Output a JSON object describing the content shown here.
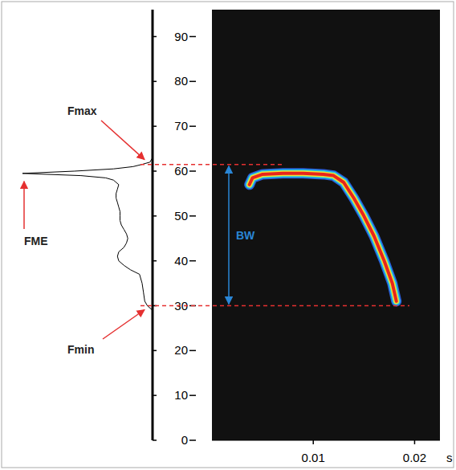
{
  "chart_data": {
    "type": "spectrogram",
    "x_label": "s",
    "xlim": [
      0,
      0.0225
    ],
    "xticks": [
      0.01,
      0.02
    ],
    "ylim": [
      0,
      96
    ],
    "yticks": [
      0,
      10,
      20,
      30,
      40,
      50,
      60,
      70,
      80,
      90
    ],
    "contour": {
      "x": [
        0.0037,
        0.004,
        0.005,
        0.007,
        0.009,
        0.011,
        0.012,
        0.013,
        0.014,
        0.015,
        0.016,
        0.017,
        0.0178,
        0.0182
      ],
      "y": [
        57,
        58.5,
        59.3,
        59.5,
        59.5,
        59.3,
        59,
        57.5,
        54,
        50,
        45.5,
        40,
        35,
        31
      ]
    },
    "spectrum": {
      "amplitude_lim": [
        0,
        1
      ],
      "frequency": [
        29,
        30,
        31,
        33,
        35,
        37,
        38,
        39,
        40,
        41,
        42,
        43,
        44,
        45,
        46,
        47,
        48,
        49,
        50,
        51,
        52,
        53,
        54,
        55,
        56,
        57,
        58,
        58.5,
        59,
        59.5,
        60,
        60.5,
        61,
        61.5,
        62,
        63
      ],
      "amplitude": [
        0,
        0.04,
        0.06,
        0.07,
        0.08,
        0.1,
        0.17,
        0.22,
        0.26,
        0.27,
        0.26,
        0.22,
        0.2,
        0.19,
        0.2,
        0.22,
        0.24,
        0.25,
        0.25,
        0.25,
        0.26,
        0.27,
        0.28,
        0.28,
        0.27,
        0.26,
        0.3,
        0.36,
        0.55,
        1,
        0.6,
        0.3,
        0.15,
        0.08,
        0.02,
        0
      ]
    },
    "annotations": [
      {
        "label": "Fmax",
        "value": 61.5
      },
      {
        "label": "Fmin",
        "value": 30
      },
      {
        "label": "FME",
        "value": 59.5
      },
      {
        "label": "BW",
        "from": 30,
        "to": 61.5
      }
    ]
  }
}
